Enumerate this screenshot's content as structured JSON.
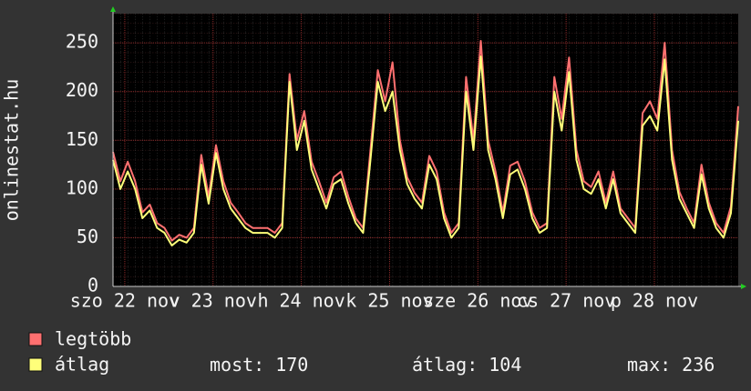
{
  "chart_data": {
    "type": "line",
    "y_axis_label": "onlinestat.hu",
    "xlim": [
      0,
      85
    ],
    "xticks": [
      {
        "value": 1.6,
        "label": "szo 22 nov"
      },
      {
        "value": 13.6,
        "label": "v 23 nov"
      },
      {
        "value": 25.6,
        "label": "h 24 nov"
      },
      {
        "value": 37.6,
        "label": "k 25 nov"
      },
      {
        "value": 49.6,
        "label": "sze 26 nov"
      },
      {
        "value": 61.6,
        "label": "cs 27 nov"
      },
      {
        "value": 73.6,
        "label": "p 28 nov"
      }
    ],
    "ylim": [
      0,
      280
    ],
    "yticks": [
      0,
      50,
      100,
      150,
      200,
      250
    ],
    "grid": true,
    "series": [
      {
        "name": "legtöbb",
        "color": "#ff7070",
        "values": [
          138,
          108,
          128,
          108,
          76,
          84,
          65,
          60,
          47,
          53,
          50,
          60,
          135,
          92,
          145,
          108,
          86,
          76,
          65,
          60,
          60,
          60,
          55,
          65,
          218,
          150,
          180,
          128,
          108,
          86,
          112,
          118,
          92,
          70,
          60,
          140,
          222,
          190,
          230,
          150,
          112,
          96,
          86,
          134,
          118,
          76,
          55,
          65,
          215,
          150,
          252,
          150,
          118,
          76,
          124,
          128,
          108,
          76,
          60,
          65,
          215,
          172,
          235,
          140,
          108,
          102,
          118,
          86,
          118,
          80,
          70,
          60,
          178,
          190,
          172,
          250,
          140,
          97,
          80,
          65,
          125,
          86,
          65,
          55,
          82,
          185
        ]
      },
      {
        "name": "átlag",
        "color": "#ffff7a",
        "values": [
          130,
          100,
          118,
          100,
          70,
          78,
          60,
          55,
          42,
          48,
          45,
          55,
          125,
          85,
          137,
          100,
          80,
          70,
          60,
          55,
          55,
          55,
          50,
          60,
          210,
          140,
          170,
          120,
          100,
          80,
          105,
          110,
          85,
          65,
          55,
          130,
          210,
          180,
          200,
          140,
          105,
          90,
          80,
          125,
          110,
          70,
          50,
          60,
          200,
          140,
          236,
          140,
          110,
          70,
          115,
          120,
          100,
          70,
          55,
          60,
          200,
          160,
          220,
          130,
          100,
          95,
          110,
          80,
          110,
          75,
          65,
          55,
          165,
          175,
          160,
          233,
          130,
          90,
          75,
          60,
          115,
          80,
          60,
          50,
          75,
          170
        ]
      }
    ],
    "stats": [
      {
        "label": "most:",
        "value": 170
      },
      {
        "label": "átlag:",
        "value": 104
      },
      {
        "label": "max:",
        "value": 236
      }
    ]
  }
}
